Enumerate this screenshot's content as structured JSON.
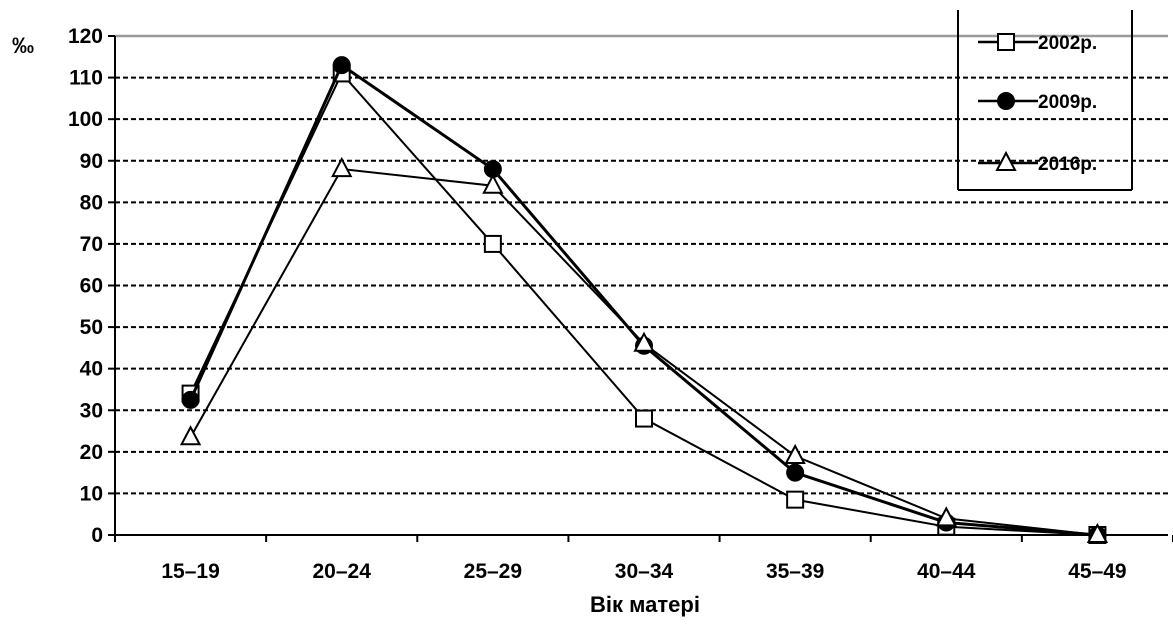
{
  "chart_data": {
    "type": "line",
    "title": "",
    "ylabel": "‰",
    "xlabel": "Вік матері",
    "categories": [
      "15–19",
      "20–24",
      "25–29",
      "30–34",
      "35–39",
      "40–44",
      "45–49"
    ],
    "ylim": [
      0,
      120
    ],
    "yticks": [
      0,
      10,
      20,
      30,
      40,
      50,
      60,
      70,
      80,
      90,
      100,
      110,
      120
    ],
    "grid": "horizontal dashed",
    "legend_position": "top-right",
    "series": [
      {
        "name": "2002р.",
        "marker": "square-open",
        "values": [
          34,
          111,
          70,
          28,
          8.5,
          2,
          0
        ]
      },
      {
        "name": "2009р.",
        "marker": "circle-filled",
        "values": [
          32.5,
          113,
          88,
          45.5,
          15,
          3,
          0
        ]
      },
      {
        "name": "2016р.",
        "marker": "triangle-open",
        "values": [
          23.5,
          88,
          84,
          46,
          19,
          4,
          0
        ]
      }
    ]
  }
}
